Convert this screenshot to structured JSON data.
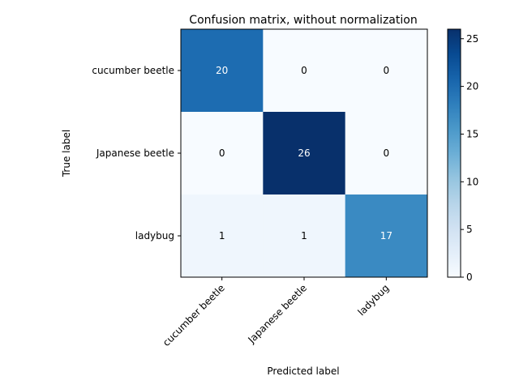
{
  "chart_data": {
    "type": "heatmap",
    "title": "Confusion matrix, without normalization",
    "xlabel": "Predicted label",
    "ylabel": "True label",
    "x_categories": [
      "cucumber beetle",
      "Japanese beetle",
      "ladybug"
    ],
    "y_categories": [
      "cucumber beetle",
      "Japanese beetle",
      "ladybug"
    ],
    "matrix": [
      [
        20,
        0,
        0
      ],
      [
        0,
        26,
        0
      ],
      [
        1,
        1,
        17
      ]
    ],
    "colormap": "Blues",
    "colorbar_range": [
      0,
      26
    ],
    "colorbar_ticks": [
      0,
      5,
      10,
      15,
      20,
      25
    ],
    "text_colors": {
      "dark": "#000000",
      "light": "#ffffff"
    }
  }
}
